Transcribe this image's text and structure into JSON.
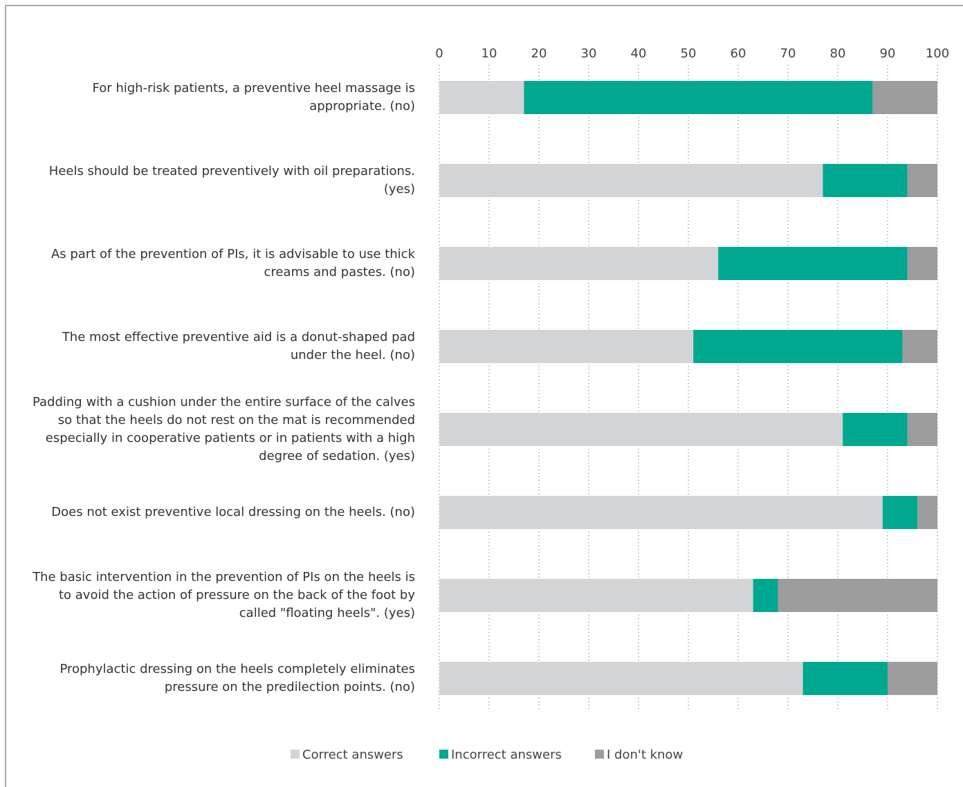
{
  "chart_data": {
    "type": "stacked-bar-horizontal",
    "categories": [
      "For high-risk patients, a preventive heel massage is appropriate. (no)",
      "Heels should be treated preventively with oil preparations. (yes)",
      "As part of the prevention of PIs, it is advisable to use thick creams and pastes. (no)",
      "The most effective preventive aid is a donut-shaped pad under the heel. (no)",
      "Padding with a cushion under the entire surface of the calves so that the heels do not rest on the mat is recommended especially in cooperative patients or in patients with a high degree of sedation. (yes)",
      "Does not exist preventive local dressing on the heels. (no)",
      "The basic intervention in the prevention of PIs on the heels is to avoid the action of pressure on the back of the foot by called \"floating heels\". (yes)",
      "Prophylactic dressing on the heels completely eliminates pressure on the predilection points. (no)"
    ],
    "series": [
      {
        "name": "Correct answers",
        "color": "#d3d4d6",
        "values": [
          17,
          77,
          56,
          51,
          81,
          89,
          63,
          73
        ]
      },
      {
        "name": "Incorrect answers",
        "color": "#00a88f",
        "values": [
          70,
          17,
          38,
          42,
          13,
          7,
          5,
          17
        ]
      },
      {
        "name": "I don't know",
        "color": "#9d9d9e",
        "values": [
          13,
          6,
          6,
          7,
          6,
          4,
          32,
          10
        ]
      }
    ],
    "xlim": [
      0,
      100
    ],
    "xticks": [
      0,
      10,
      20,
      30,
      40,
      50,
      60,
      70,
      80,
      90,
      100
    ],
    "grid": true
  }
}
